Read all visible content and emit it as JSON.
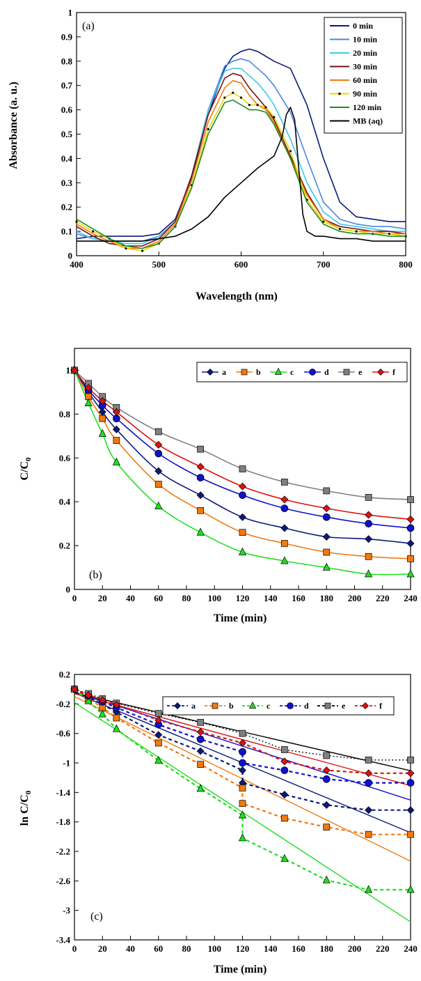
{
  "chart_data": [
    {
      "type": "line",
      "panel": "(a)",
      "xlabel": "Wavelength (nm)",
      "ylabel": "Absorbance (a. u.)",
      "xlim": [
        400,
        800
      ],
      "ylim": [
        0,
        1
      ],
      "xticks": [
        400,
        500,
        600,
        700,
        800
      ],
      "yticks": [
        0,
        0.1,
        0.2,
        0.3,
        0.4,
        0.5,
        0.6,
        0.7,
        0.8,
        0.9,
        1
      ],
      "grid": false,
      "legend": "top-right",
      "series": [
        {
          "name": "0 min",
          "color": "#0b1a78",
          "x": [
            400,
            420,
            440,
            460,
            480,
            500,
            520,
            540,
            560,
            580,
            590,
            600,
            610,
            620,
            630,
            640,
            660,
            680,
            700,
            720,
            740,
            760,
            780,
            800
          ],
          "y": [
            0.07,
            0.08,
            0.08,
            0.08,
            0.08,
            0.09,
            0.15,
            0.32,
            0.58,
            0.77,
            0.82,
            0.84,
            0.85,
            0.84,
            0.82,
            0.8,
            0.77,
            0.62,
            0.4,
            0.22,
            0.16,
            0.15,
            0.14,
            0.14
          ]
        },
        {
          "name": "10 min",
          "color": "#4a86e8",
          "x": [
            400,
            420,
            440,
            460,
            480,
            500,
            520,
            540,
            560,
            580,
            590,
            600,
            610,
            620,
            630,
            640,
            660,
            680,
            700,
            720,
            740,
            760,
            780,
            800
          ],
          "y": [
            0.09,
            0.07,
            0.06,
            0.06,
            0.06,
            0.08,
            0.14,
            0.33,
            0.6,
            0.78,
            0.8,
            0.81,
            0.8,
            0.77,
            0.74,
            0.7,
            0.59,
            0.4,
            0.22,
            0.15,
            0.13,
            0.12,
            0.12,
            0.11
          ]
        },
        {
          "name": "20 min",
          "color": "#3cc8e8",
          "x": [
            400,
            420,
            440,
            460,
            480,
            500,
            520,
            540,
            560,
            580,
            590,
            600,
            610,
            620,
            630,
            640,
            660,
            680,
            700,
            720,
            740,
            760,
            780,
            800
          ],
          "y": [
            0.1,
            0.07,
            0.06,
            0.05,
            0.05,
            0.08,
            0.14,
            0.33,
            0.6,
            0.76,
            0.77,
            0.77,
            0.74,
            0.71,
            0.67,
            0.62,
            0.48,
            0.3,
            0.18,
            0.13,
            0.12,
            0.11,
            0.1,
            0.1
          ]
        },
        {
          "name": "30 min",
          "color": "#7a1010",
          "x": [
            400,
            420,
            440,
            460,
            480,
            500,
            520,
            540,
            560,
            580,
            590,
            600,
            610,
            620,
            630,
            640,
            660,
            680,
            700,
            720,
            740,
            760,
            780,
            800
          ],
          "y": [
            0.12,
            0.08,
            0.05,
            0.04,
            0.04,
            0.07,
            0.14,
            0.33,
            0.58,
            0.73,
            0.75,
            0.74,
            0.69,
            0.65,
            0.61,
            0.56,
            0.41,
            0.26,
            0.15,
            0.12,
            0.11,
            0.1,
            0.1,
            0.09
          ]
        },
        {
          "name": "60 min",
          "color": "#f07a10",
          "x": [
            400,
            420,
            440,
            460,
            480,
            500,
            520,
            540,
            560,
            580,
            590,
            600,
            610,
            620,
            630,
            640,
            660,
            680,
            700,
            720,
            740,
            760,
            780,
            800
          ],
          "y": [
            0.13,
            0.09,
            0.06,
            0.03,
            0.03,
            0.06,
            0.13,
            0.31,
            0.55,
            0.69,
            0.72,
            0.71,
            0.66,
            0.62,
            0.6,
            0.55,
            0.4,
            0.25,
            0.15,
            0.11,
            0.1,
            0.1,
            0.09,
            0.09
          ]
        },
        {
          "name": "90 min",
          "color": "#e8d800",
          "marker": "dot",
          "x": [
            400,
            420,
            440,
            460,
            480,
            500,
            520,
            540,
            560,
            580,
            590,
            600,
            610,
            620,
            630,
            640,
            660,
            680,
            700,
            720,
            740,
            760,
            780,
            800
          ],
          "y": [
            0.14,
            0.1,
            0.07,
            0.03,
            0.02,
            0.05,
            0.12,
            0.29,
            0.52,
            0.65,
            0.67,
            0.65,
            0.62,
            0.62,
            0.61,
            0.57,
            0.43,
            0.23,
            0.14,
            0.11,
            0.1,
            0.09,
            0.09,
            0.08
          ]
        },
        {
          "name": "120 min",
          "color": "#1e8c1e",
          "x": [
            400,
            420,
            440,
            460,
            480,
            500,
            520,
            540,
            560,
            580,
            590,
            600,
            610,
            620,
            630,
            640,
            660,
            680,
            700,
            720,
            740,
            760,
            780,
            800
          ],
          "y": [
            0.15,
            0.11,
            0.07,
            0.04,
            0.03,
            0.05,
            0.12,
            0.28,
            0.5,
            0.63,
            0.64,
            0.62,
            0.6,
            0.6,
            0.59,
            0.54,
            0.4,
            0.22,
            0.13,
            0.1,
            0.09,
            0.09,
            0.08,
            0.08
          ]
        },
        {
          "name": "MB (aq)",
          "color": "#000000",
          "x": [
            400,
            420,
            440,
            460,
            480,
            500,
            520,
            540,
            560,
            580,
            600,
            620,
            640,
            650,
            655,
            660,
            665,
            670,
            675,
            680,
            690,
            700,
            720,
            740,
            760,
            780,
            800
          ],
          "y": [
            0.06,
            0.06,
            0.06,
            0.06,
            0.06,
            0.07,
            0.08,
            0.11,
            0.16,
            0.24,
            0.3,
            0.36,
            0.41,
            0.49,
            0.58,
            0.61,
            0.56,
            0.36,
            0.17,
            0.1,
            0.08,
            0.08,
            0.07,
            0.07,
            0.06,
            0.06,
            0.06
          ]
        }
      ]
    },
    {
      "type": "line",
      "panel": "(b)",
      "xlabel": "Time (min)",
      "ylabel": "C/C",
      "ylabel_subscript": "0",
      "xlim": [
        0,
        240
      ],
      "ylim": [
        0,
        1.1
      ],
      "xticks": [
        0,
        20,
        40,
        60,
        80,
        100,
        120,
        140,
        160,
        180,
        200,
        220,
        240
      ],
      "yticks": [
        0,
        0.2,
        0.4,
        0.6,
        0.8,
        1
      ],
      "grid": false,
      "legend": "top-right",
      "x": [
        0,
        10,
        20,
        30,
        60,
        90,
        120,
        150,
        180,
        210,
        240
      ],
      "series": [
        {
          "name": "a",
          "color": "#0b1a78",
          "marker": "diamond",
          "values": [
            1,
            0.9,
            0.81,
            0.73,
            0.54,
            0.43,
            0.33,
            0.28,
            0.24,
            0.23,
            0.21
          ]
        },
        {
          "name": "b",
          "color": "#f07a10",
          "marker": "square",
          "values": [
            1,
            0.88,
            0.78,
            0.68,
            0.48,
            0.36,
            0.26,
            0.21,
            0.17,
            0.15,
            0.14
          ]
        },
        {
          "name": "c",
          "color": "#22dd22",
          "marker": "triangle",
          "values": [
            1,
            0.85,
            0.71,
            0.58,
            0.38,
            0.26,
            0.17,
            0.13,
            0.1,
            0.07,
            0.07
          ]
        },
        {
          "name": "d",
          "color": "#1010cc",
          "marker": "circle",
          "values": [
            1,
            0.91,
            0.84,
            0.78,
            0.62,
            0.51,
            0.43,
            0.37,
            0.33,
            0.3,
            0.28
          ]
        },
        {
          "name": "e",
          "color": "#808080",
          "marker": "square",
          "values": [
            1,
            0.94,
            0.88,
            0.83,
            0.72,
            0.64,
            0.55,
            0.49,
            0.45,
            0.42,
            0.41
          ]
        },
        {
          "name": "f",
          "color": "#dd1111",
          "marker": "diamond",
          "values": [
            1,
            0.92,
            0.86,
            0.81,
            0.66,
            0.56,
            0.47,
            0.41,
            0.37,
            0.34,
            0.32
          ]
        }
      ]
    },
    {
      "type": "scatter",
      "panel": "(c)",
      "xlabel": "Time (min)",
      "ylabel": "ln C/C",
      "ylabel_subscript": "0",
      "xlim": [
        0,
        240
      ],
      "ylim": [
        -3.4,
        0.2
      ],
      "xticks": [
        0,
        20,
        40,
        60,
        80,
        100,
        120,
        140,
        160,
        180,
        200,
        220,
        240
      ],
      "yticks": [
        0.2,
        -0.2,
        -0.6,
        -1,
        -1.4,
        -1.8,
        -2.2,
        -2.6,
        -3,
        -3.4
      ],
      "grid": false,
      "legend": "top-right",
      "series": [
        {
          "name": "a",
          "color": "#0b1a78",
          "marker": "diamond",
          "x": [
            0,
            10,
            20,
            30,
            60,
            90,
            120,
            120,
            150,
            180,
            210,
            240
          ],
          "values": [
            0,
            -0.1,
            -0.21,
            -0.31,
            -0.62,
            -0.84,
            -1.1,
            -1.27,
            -1.43,
            -1.57,
            -1.64,
            -1.64
          ],
          "fit": [
            -0.05,
            -0.0079
          ]
        },
        {
          "name": "b",
          "color": "#f07a10",
          "marker": "square",
          "x": [
            0,
            10,
            20,
            30,
            60,
            90,
            120,
            120,
            150,
            180,
            210,
            240
          ],
          "values": [
            0,
            -0.13,
            -0.25,
            -0.39,
            -0.73,
            -1.02,
            -1.34,
            -1.55,
            -1.75,
            -1.87,
            -1.97,
            -1.97
          ],
          "fit": [
            -0.1,
            -0.0093
          ]
        },
        {
          "name": "c",
          "color": "#22dd22",
          "marker": "triangle",
          "x": [
            0,
            10,
            20,
            30,
            60,
            90,
            120,
            120,
            150,
            180,
            210,
            240
          ],
          "values": [
            0,
            -0.16,
            -0.34,
            -0.54,
            -0.97,
            -1.35,
            -1.71,
            -2.02,
            -2.3,
            -2.59,
            -2.72,
            -2.72
          ],
          "fit": [
            -0.18,
            -0.0124
          ]
        },
        {
          "name": "d",
          "color": "#1010cc",
          "marker": "circle",
          "x": [
            0,
            10,
            20,
            30,
            60,
            90,
            120,
            120,
            150,
            180,
            210,
            240
          ],
          "values": [
            0,
            -0.09,
            -0.17,
            -0.25,
            -0.48,
            -0.68,
            -0.85,
            -1.0,
            -1.1,
            -1.22,
            -1.27,
            -1.27
          ],
          "fit": [
            -0.04,
            -0.0061
          ]
        },
        {
          "name": "e",
          "color": "#808080",
          "marker": "square",
          "x": [
            0,
            10,
            20,
            30,
            60,
            90,
            120,
            150,
            180,
            210,
            240
          ],
          "values": [
            0,
            -0.06,
            -0.13,
            -0.19,
            -0.33,
            -0.45,
            -0.6,
            -0.82,
            -0.9,
            -0.96,
            -0.96
          ],
          "fit": [
            -0.05,
            -0.0044
          ]
        },
        {
          "name": "f",
          "color": "#dd1111",
          "marker": "diamond",
          "x": [
            0,
            10,
            20,
            30,
            60,
            90,
            120,
            150,
            180,
            210,
            240
          ],
          "values": [
            0,
            -0.08,
            -0.15,
            -0.21,
            -0.42,
            -0.58,
            -0.73,
            -0.98,
            -1.1,
            -1.14,
            -1.14
          ],
          "fit": [
            -0.06,
            -0.0052
          ]
        }
      ]
    }
  ]
}
